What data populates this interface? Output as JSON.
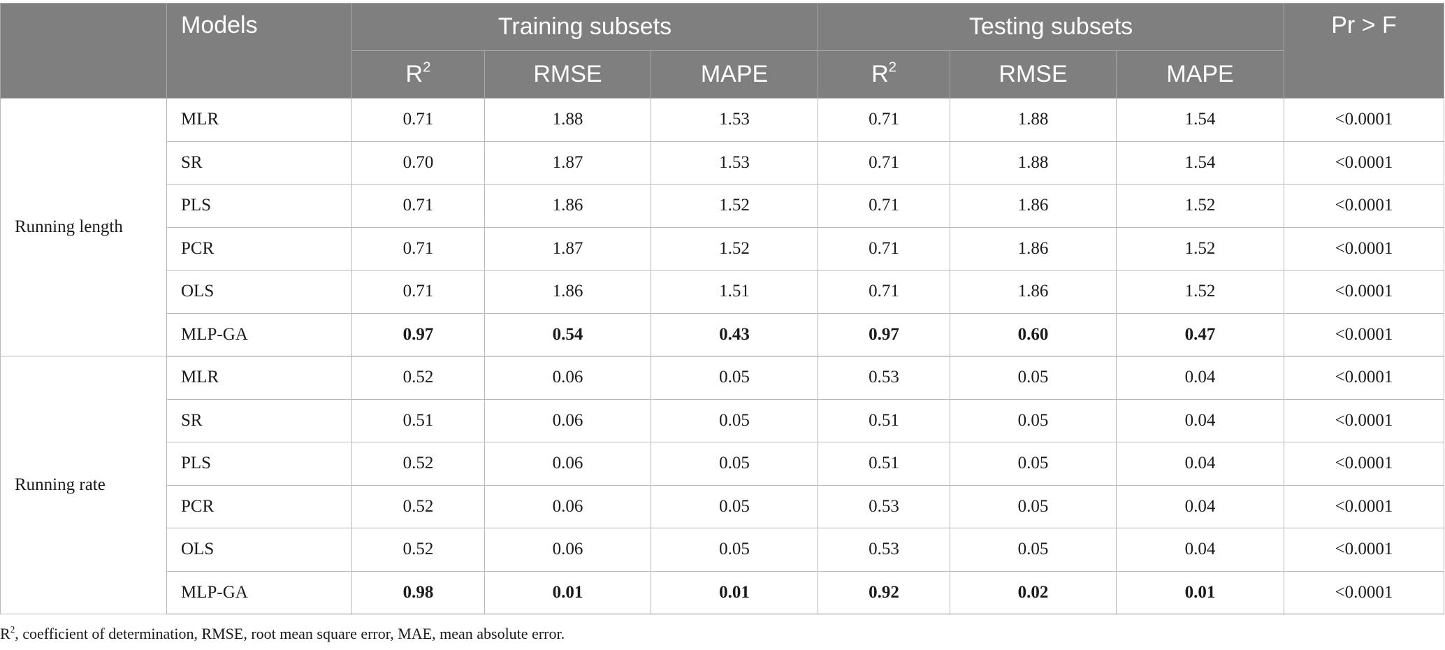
{
  "header": {
    "models": "Models",
    "training_group": "Training subsets",
    "testing_group": "Testing subsets",
    "prf": "Pr > F",
    "metric_r": "R",
    "metric_r_sup": "2",
    "metric_rmse": "RMSE",
    "metric_mape": "MAPE"
  },
  "groups": [
    {
      "label": "Running length",
      "rows": [
        {
          "model": "MLR",
          "train_r2": "0.71",
          "train_rmse": "1.88",
          "train_mape": "1.53",
          "test_r2": "0.71",
          "test_rmse": "1.88",
          "test_mape": "1.54",
          "prf": "<0.0001"
        },
        {
          "model": "SR",
          "train_r2": "0.70",
          "train_rmse": "1.87",
          "train_mape": "1.53",
          "test_r2": "0.71",
          "test_rmse": "1.88",
          "test_mape": "1.54",
          "prf": "<0.0001"
        },
        {
          "model": "PLS",
          "train_r2": "0.71",
          "train_rmse": "1.86",
          "train_mape": "1.52",
          "test_r2": "0.71",
          "test_rmse": "1.86",
          "test_mape": "1.52",
          "prf": "<0.0001"
        },
        {
          "model": "PCR",
          "train_r2": "0.71",
          "train_rmse": "1.87",
          "train_mape": "1.52",
          "test_r2": "0.71",
          "test_rmse": "1.86",
          "test_mape": "1.52",
          "prf": "<0.0001"
        },
        {
          "model": "OLS",
          "train_r2": "0.71",
          "train_rmse": "1.86",
          "train_mape": "1.51",
          "test_r2": "0.71",
          "test_rmse": "1.86",
          "test_mape": "1.52",
          "prf": "<0.0001"
        },
        {
          "model": "MLP-GA",
          "train_r2": "0.97",
          "train_rmse": "0.54",
          "train_mape": "0.43",
          "test_r2": "0.97",
          "test_rmse": "0.60",
          "test_mape": "0.47",
          "prf": "<0.0001"
        }
      ]
    },
    {
      "label": "Running rate",
      "rows": [
        {
          "model": "MLR",
          "train_r2": "0.52",
          "train_rmse": "0.06",
          "train_mape": "0.05",
          "test_r2": "0.53",
          "test_rmse": "0.05",
          "test_mape": "0.04",
          "prf": "<0.0001"
        },
        {
          "model": "SR",
          "train_r2": "0.51",
          "train_rmse": "0.06",
          "train_mape": "0.05",
          "test_r2": "0.51",
          "test_rmse": "0.05",
          "test_mape": "0.04",
          "prf": "<0.0001"
        },
        {
          "model": "PLS",
          "train_r2": "0.52",
          "train_rmse": "0.06",
          "train_mape": "0.05",
          "test_r2": "0.51",
          "test_rmse": "0.05",
          "test_mape": "0.04",
          "prf": "<0.0001"
        },
        {
          "model": "PCR",
          "train_r2": "0.52",
          "train_rmse": "0.06",
          "train_mape": "0.05",
          "test_r2": "0.53",
          "test_rmse": "0.05",
          "test_mape": "0.04",
          "prf": "<0.0001"
        },
        {
          "model": "OLS",
          "train_r2": "0.52",
          "train_rmse": "0.06",
          "train_mape": "0.05",
          "test_r2": "0.53",
          "test_rmse": "0.05",
          "test_mape": "0.04",
          "prf": "<0.0001"
        },
        {
          "model": "MLP-GA",
          "train_r2": "0.98",
          "train_rmse": "0.01",
          "train_mape": "0.01",
          "test_r2": "0.92",
          "test_rmse": "0.02",
          "test_mape": "0.01",
          "prf": "<0.0001"
        }
      ]
    }
  ],
  "footnote": {
    "r": "R",
    "r_sup": "2",
    "text": ", coefficient of determination, RMSE, root mean square error, MAE, mean absolute error."
  }
}
